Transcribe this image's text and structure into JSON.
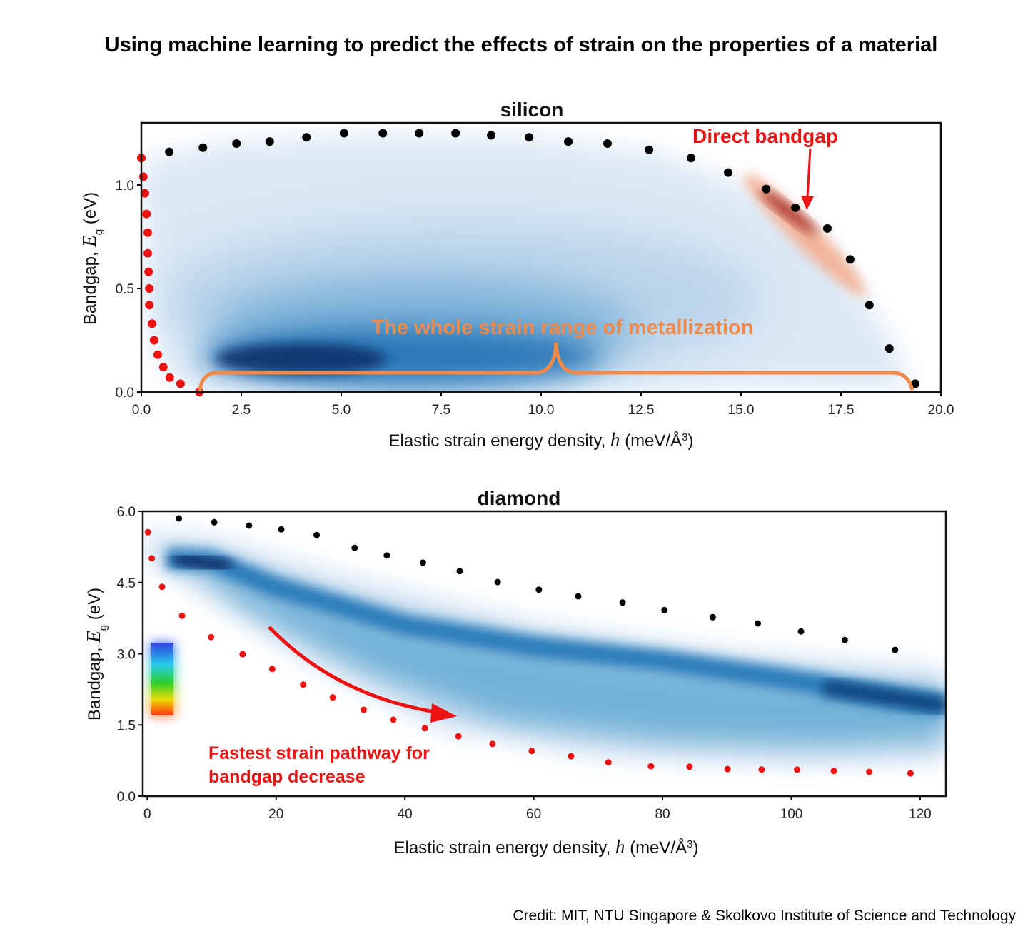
{
  "title": "Using machine learning to predict the effects of strain on the properties of a material",
  "credit": "Credit: MIT, NTU Singapore & Skolkovo Institute of Science and Technology",
  "colors": {
    "upper_bound_dots": "#000000",
    "lower_bound_dots": "#ee1111",
    "density": "#08519c",
    "direct_bandgap_density": "#c0392b",
    "annotation_red": "#ee1111",
    "annotation_orange": "#f08a4b"
  },
  "chart_data": [
    {
      "type": "scatter",
      "title": "silicon",
      "xlabel": {
        "text": "Elastic strain energy density, ",
        "symbol": "h",
        "unit": " (meV/Å",
        "sup": "3",
        ")": ")"
      },
      "ylabel": {
        "text": "Bandgap, ",
        "symbol": "E",
        "sub": "g",
        "unit": " (eV)"
      },
      "xlim": [
        0,
        20
      ],
      "ylim": [
        0,
        1.3
      ],
      "xticks": [
        "0.0",
        "2.5",
        "5.0",
        "7.5",
        "10.0",
        "12.5",
        "15.0",
        "17.5",
        "20.0"
      ],
      "yticks": [
        "0.0",
        "0.5",
        "1.0"
      ],
      "grid": false,
      "background": "density heatmap (blue) of bandgap vs strain energy; red density for direct bandgap",
      "series": [
        {
          "color": "#000000",
          "x": [
            0.7,
            1.54,
            2.38,
            3.21,
            4.13,
            5.07,
            6.04,
            6.95,
            7.86,
            8.75,
            9.7,
            10.68,
            11.66,
            12.7,
            13.75,
            14.68,
            15.63,
            16.36,
            17.16,
            17.73,
            18.21,
            18.71,
            19.36
          ],
          "y": [
            1.16,
            1.18,
            1.2,
            1.21,
            1.23,
            1.25,
            1.25,
            1.25,
            1.25,
            1.24,
            1.23,
            1.21,
            1.2,
            1.17,
            1.13,
            1.06,
            0.98,
            0.89,
            0.79,
            0.64,
            0.42,
            0.21,
            0.04
          ]
        },
        {
          "color": "#ee1111",
          "x": [
            0,
            0.05,
            0.09,
            0.13,
            0.16,
            0.16,
            0.18,
            0.2,
            0.2,
            0.27,
            0.32,
            0.41,
            0.55,
            0.71,
            0.98,
            1.45
          ],
          "y": [
            1.13,
            1.04,
            0.96,
            0.86,
            0.77,
            0.67,
            0.58,
            0.5,
            0.42,
            0.33,
            0.25,
            0.18,
            0.12,
            0.07,
            0.04,
            0.0
          ]
        }
      ],
      "annotations": {
        "direct_bandgap": "Direct bandgap",
        "metallization": "The whole strain range of metallization"
      }
    },
    {
      "type": "scatter",
      "title": "diamond",
      "xlabel": {
        "text": "Elastic strain energy density, ",
        "symbol": "h",
        "unit": " (meV/Å",
        "sup": "3",
        ")": ")"
      },
      "ylabel": {
        "text": "Bandgap, ",
        "symbol": "E",
        "sub": "g",
        "unit": " (eV)"
      },
      "xlim": [
        -0.7,
        124
      ],
      "ylim": [
        0,
        6
      ],
      "xticks": [
        "0",
        "20",
        "40",
        "60",
        "80",
        "100",
        "120"
      ],
      "yticks": [
        "0.0",
        "1.5",
        "3.0",
        "4.5",
        "6.0"
      ],
      "grid": false,
      "background": "density heatmap (blue) of bandgap vs strain energy",
      "series": [
        {
          "color": "#000000",
          "x": [
            4.9,
            10.4,
            15.8,
            20.8,
            26.3,
            32.2,
            37.2,
            42.8,
            48.5,
            54.4,
            60.8,
            66.9,
            73.8,
            80.3,
            87.8,
            94.8,
            101.5,
            108.3,
            116.1
          ],
          "y": [
            5.85,
            5.77,
            5.7,
            5.62,
            5.5,
            5.23,
            5.07,
            4.92,
            4.74,
            4.51,
            4.35,
            4.21,
            4.08,
            3.92,
            3.77,
            3.64,
            3.47,
            3.29,
            3.08
          ]
        },
        {
          "color": "#ee1111",
          "x": [
            0.1,
            0.7,
            2.3,
            5.4,
            9.9,
            14.8,
            19.4,
            24.2,
            28.8,
            33.6,
            38.2,
            43.1,
            48.3,
            53.6,
            59.7,
            65.8,
            71.6,
            78.2,
            84.2,
            90.1,
            95.4,
            100.9,
            106.6,
            112.1,
            118.5
          ],
          "y": [
            5.56,
            5.01,
            4.41,
            3.8,
            3.35,
            2.99,
            2.68,
            2.35,
            2.08,
            1.82,
            1.61,
            1.43,
            1.26,
            1.1,
            0.95,
            0.84,
            0.71,
            0.63,
            0.62,
            0.57,
            0.56,
            0.56,
            0.53,
            0.51,
            0.48
          ]
        }
      ],
      "annotations": {
        "pathway_line1": "Fastest strain pathway for",
        "pathway_line2": "bandgap decrease"
      }
    }
  ]
}
